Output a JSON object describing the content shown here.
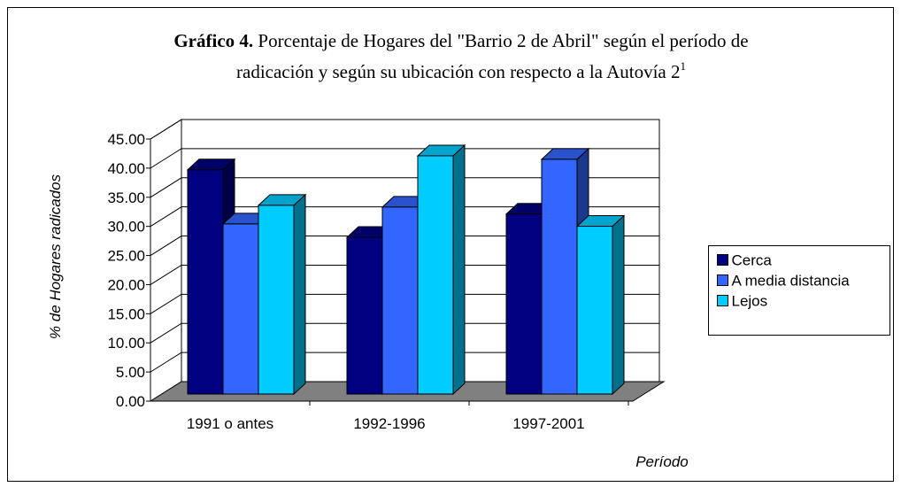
{
  "chart_data": {
    "type": "bar3d",
    "title_label": "Gráfico 4.",
    "title": [
      "Porcentaje de Hogares del \"Barrio 2 de Abril\" según el período de",
      "radicación y según su ubicación con respecto a la Autovía 2"
    ],
    "title_footnote": "1",
    "y_label": "% de Hogares radicados",
    "x_label": "Período",
    "categories": [
      "1991 o antes",
      "1992-1996",
      "1997-2001"
    ],
    "series": [
      {
        "name": "Cerca",
        "color": "#000080",
        "values": [
          38.5,
          26.9,
          30.9
        ]
      },
      {
        "name": "A media distancia",
        "color": "#3366ff",
        "values": [
          29.2,
          32.1,
          40.3
        ]
      },
      {
        "name": "Lejos",
        "color": "#00ccff",
        "values": [
          32.4,
          40.9,
          28.8
        ]
      }
    ],
    "ylim": [
      0,
      45
    ],
    "yticks": [
      {
        "value": 0,
        "label": "0.00"
      },
      {
        "value": 5,
        "label": "5.00"
      },
      {
        "value": 10,
        "label": "10.00"
      },
      {
        "value": 15,
        "label": "15.00"
      },
      {
        "value": 20,
        "label": "20.00"
      },
      {
        "value": 25,
        "label": "25.00"
      },
      {
        "value": 30,
        "label": "30.00"
      },
      {
        "value": 35,
        "label": "35.00"
      },
      {
        "value": 40,
        "label": "40.00"
      },
      {
        "value": 45,
        "label": "45.00"
      }
    ],
    "grid": true,
    "legend": "right"
  }
}
